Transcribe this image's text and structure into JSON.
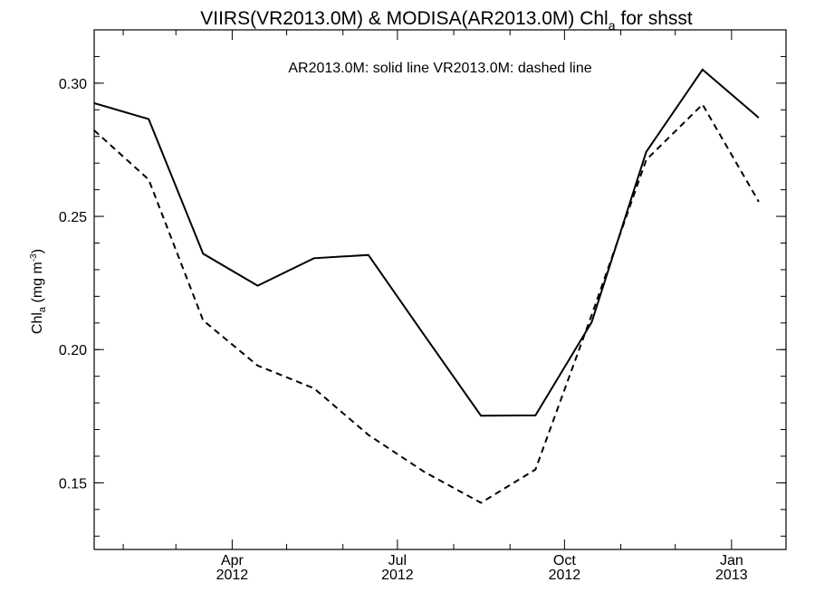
{
  "chart_data": {
    "type": "line",
    "title": {
      "main": "VIIRS(VR2013.0M) & MODISA(AR2013.0M)  Chl",
      "sub": "a",
      "tail": " for shsst"
    },
    "legend_text": "AR2013.0M: solid line   VR2013.0M: dashed line",
    "ylabel": {
      "base": "Chl",
      "sub": "a",
      "unit": " (mg m",
      "sup": "-3",
      "close": ")"
    },
    "x_range": [
      "2012-01-16",
      "2013-01-31"
    ],
    "ylim": [
      0.125,
      0.32
    ],
    "y_ticks": [
      {
        "value": 0.15,
        "label": "0.15"
      },
      {
        "value": 0.2,
        "label": "0.20"
      },
      {
        "value": 0.25,
        "label": "0.25"
      },
      {
        "value": 0.3,
        "label": "0.30"
      }
    ],
    "y_minor_step": 0.01,
    "x_major_ticks": [
      {
        "date": "2012-04-01",
        "month": "Apr",
        "year": "2012"
      },
      {
        "date": "2012-07-01",
        "month": "Jul",
        "year": "2012"
      },
      {
        "date": "2012-10-01",
        "month": "Oct",
        "year": "2012"
      },
      {
        "date": "2013-01-01",
        "month": "Jan",
        "year": "2013"
      }
    ],
    "x_minor_ticks": [
      "2012-02-01",
      "2012-03-01",
      "2012-05-01",
      "2012-06-01",
      "2012-08-01",
      "2012-09-01",
      "2012-11-01",
      "2012-12-01"
    ],
    "series": [
      {
        "style": "solid",
        "x": [
          "2012-01-16",
          "2012-02-15",
          "2012-03-16",
          "2012-04-15",
          "2012-05-16",
          "2012-06-15",
          "2012-07-16",
          "2012-08-16",
          "2012-09-15",
          "2012-10-16",
          "2012-11-15",
          "2012-12-16",
          "2013-01-16"
        ],
        "values": [
          0.2925,
          0.2865,
          0.236,
          0.224,
          0.2343,
          0.2355,
          0.2052,
          0.1752,
          0.1753,
          0.2103,
          0.2742,
          0.3051,
          0.287
        ]
      },
      {
        "style": "dashed",
        "x": [
          "2012-01-16",
          "2012-02-15",
          "2012-03-16",
          "2012-04-15",
          "2012-05-16",
          "2012-06-15",
          "2012-07-16",
          "2012-08-16",
          "2012-09-15",
          "2012-10-16",
          "2012-11-15",
          "2012-12-16",
          "2013-01-16"
        ],
        "values": [
          0.2823,
          0.2638,
          0.211,
          0.194,
          0.1855,
          0.168,
          0.154,
          0.1425,
          0.155,
          0.213,
          0.2712,
          0.292,
          0.2555
        ]
      }
    ]
  }
}
